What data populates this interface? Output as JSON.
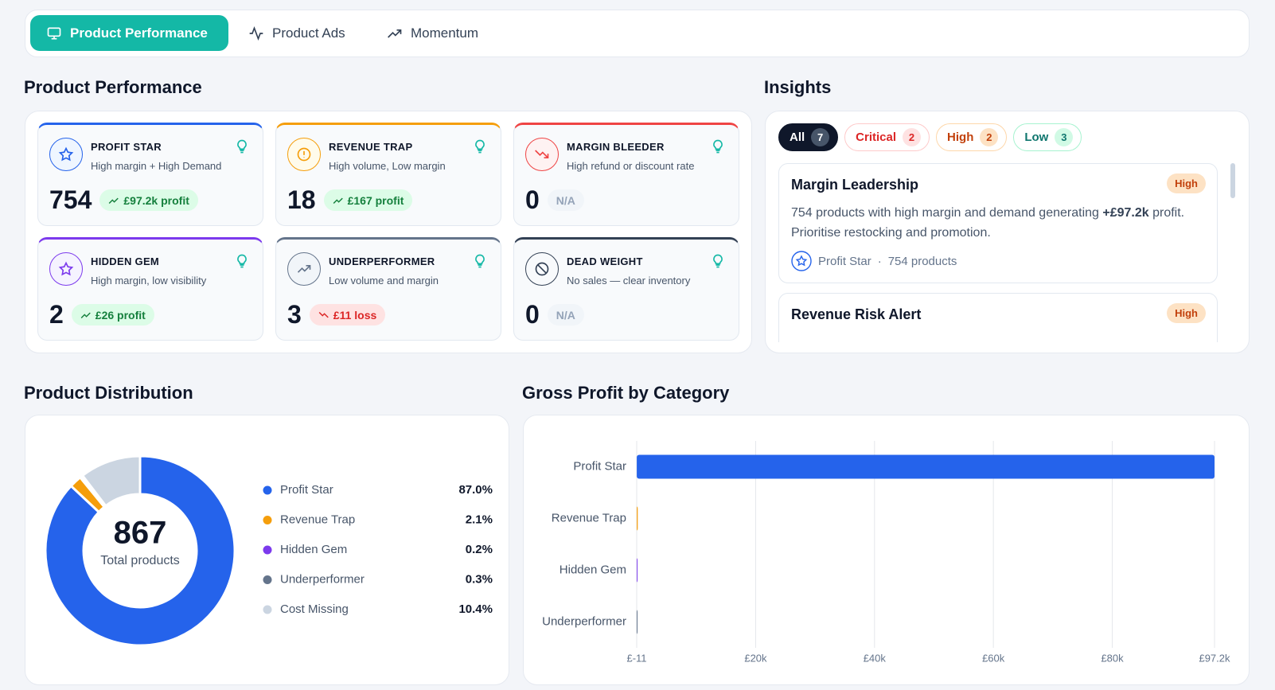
{
  "tabs": [
    "Product Performance",
    "Product Ads",
    "Momentum"
  ],
  "performance": {
    "title": "Product Performance",
    "cards": [
      {
        "name": "PROFIT STAR",
        "description": "High margin + High Demand",
        "count": 754,
        "badge": "£97.2k profit"
      },
      {
        "name": "REVENUE TRAP",
        "description": "High volume, Low margin",
        "count": 18,
        "badge": "£167 profit"
      },
      {
        "name": "MARGIN BLEEDER",
        "description": "High refund or discount rate",
        "count": 0,
        "badge": "N/A"
      },
      {
        "name": "HIDDEN GEM",
        "description": "High margin, low visibility",
        "count": 2,
        "badge": "£26 profit"
      },
      {
        "name": "UNDERPERFORMER",
        "description": "Low volume and margin",
        "count": 3,
        "badge": "£11 loss"
      },
      {
        "name": "DEAD WEIGHT",
        "description": "No sales — clear inventory",
        "count": 0,
        "badge": "N/A"
      }
    ]
  },
  "insights": {
    "title": "Insights",
    "filters": [
      {
        "label": "All",
        "count": 7
      },
      {
        "label": "Critical",
        "count": 2
      },
      {
        "label": "High",
        "count": 2
      },
      {
        "label": "Low",
        "count": 3
      }
    ],
    "items": [
      {
        "title": "Margin Leadership",
        "priority": "High",
        "text_before": "754 products with high margin and demand generating ",
        "highlight": "+£97.2k",
        "text_after": " profit. Prioritise restocking and promotion.",
        "category": "Profit Star",
        "products": "754 products"
      },
      {
        "title": "Revenue Risk Alert",
        "priority": "High"
      }
    ]
  },
  "chart_data": [
    {
      "type": "donut",
      "title": "Product Distribution",
      "center_value": 867,
      "center_label": "Total products",
      "categories": [
        "Profit Star",
        "Revenue Trap",
        "Hidden Gem",
        "Underperformer",
        "Cost Missing"
      ],
      "values": [
        87.0,
        2.1,
        0.2,
        0.3,
        10.4
      ],
      "value_labels": [
        "87.0%",
        "2.1%",
        "0.2%",
        "0.3%",
        "10.4%"
      ],
      "colors": [
        "#2563eb",
        "#f59e0b",
        "#7c3aed",
        "#64748b",
        "#cbd5e1"
      ]
    },
    {
      "type": "bar",
      "orientation": "horizontal",
      "title": "Gross Profit by Category",
      "categories": [
        "Profit Star",
        "Revenue Trap",
        "Hidden Gem",
        "Underperformer"
      ],
      "values": [
        97200,
        167,
        26,
        -11
      ],
      "colors": [
        "#2563eb",
        "#f59e0b",
        "#7c3aed",
        "#64748b"
      ],
      "xlim": [
        -11,
        97200
      ],
      "xticks": [
        {
          "value": -11,
          "label": "£-11"
        },
        {
          "value": 20000,
          "label": "£20k"
        },
        {
          "value": 40000,
          "label": "£40k"
        },
        {
          "value": 60000,
          "label": "£60k"
        },
        {
          "value": 80000,
          "label": "£80k"
        },
        {
          "value": 97200,
          "label": "£97.2k"
        }
      ],
      "grid": true
    }
  ]
}
